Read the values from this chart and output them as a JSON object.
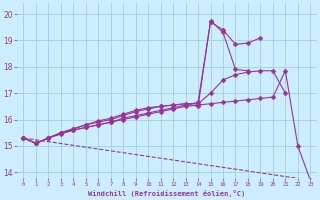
{
  "title": "",
  "xlabel": "Windchill (Refroidissement éolien,°C)",
  "bg_color": "#cceeff",
  "line_color": "#993399",
  "grid_color": "#99cccc",
  "xlim": [
    -0.5,
    23.5
  ],
  "ylim": [
    13.8,
    20.4
  ],
  "xticks": [
    0,
    1,
    2,
    3,
    4,
    5,
    6,
    7,
    8,
    9,
    10,
    11,
    12,
    13,
    14,
    15,
    16,
    17,
    18,
    19,
    20,
    21,
    22,
    23
  ],
  "yticks": [
    14,
    15,
    16,
    17,
    18,
    19,
    20
  ],
  "lines": [
    {
      "x": [
        0,
        1,
        2,
        3,
        4,
        5,
        6,
        7,
        8,
        9,
        10,
        11,
        12,
        13,
        14,
        15,
        16,
        17,
        18,
        19
      ],
      "y": [
        15.3,
        15.1,
        15.3,
        15.5,
        15.6,
        15.7,
        15.8,
        15.9,
        16.05,
        16.15,
        16.25,
        16.35,
        16.45,
        16.55,
        16.65,
        19.7,
        19.4,
        18.85,
        18.9,
        19.1
      ],
      "marker": "D",
      "markersize": 2.5,
      "style": "-",
      "lw": 0.8
    },
    {
      "x": [
        0,
        1,
        2,
        3,
        4,
        5,
        6,
        7,
        8,
        9,
        10,
        11,
        12,
        13,
        14,
        15,
        16,
        17,
        18
      ],
      "y": [
        15.3,
        15.1,
        15.3,
        15.5,
        15.65,
        15.8,
        15.95,
        16.05,
        16.2,
        16.35,
        16.45,
        16.5,
        16.55,
        16.6,
        16.5,
        19.75,
        19.3,
        17.9,
        17.85
      ],
      "marker": "D",
      "markersize": 2.5,
      "style": "-",
      "lw": 0.8
    },
    {
      "x": [
        0,
        1,
        2,
        3,
        4,
        5,
        6,
        7,
        8,
        9,
        10,
        11,
        12,
        13,
        14,
        15,
        16,
        17,
        18,
        19,
        20,
        21
      ],
      "y": [
        15.3,
        15.1,
        15.3,
        15.5,
        15.65,
        15.8,
        15.9,
        16.0,
        16.15,
        16.3,
        16.4,
        16.5,
        16.55,
        16.6,
        16.6,
        17.0,
        17.5,
        17.7,
        17.8,
        17.85,
        17.85,
        17.0
      ],
      "marker": "D",
      "markersize": 2.5,
      "style": "-",
      "lw": 0.8
    },
    {
      "x": [
        0,
        1,
        2,
        3,
        4,
        5,
        6,
        7,
        8,
        9,
        10,
        11,
        12,
        13,
        14,
        15,
        16,
        17,
        18,
        19,
        20,
        21,
        22,
        23
      ],
      "y": [
        15.3,
        15.1,
        15.3,
        15.45,
        15.6,
        15.7,
        15.8,
        15.9,
        16.0,
        16.1,
        16.2,
        16.3,
        16.4,
        16.5,
        16.55,
        16.6,
        16.65,
        16.7,
        16.75,
        16.8,
        16.85,
        17.85,
        15.0,
        13.7
      ],
      "marker": "D",
      "markersize": 2.5,
      "style": "-",
      "lw": 0.8
    },
    {
      "x": [
        0,
        23
      ],
      "y": [
        15.3,
        13.7
      ],
      "marker": null,
      "markersize": 0,
      "style": "--",
      "lw": 0.8
    }
  ]
}
